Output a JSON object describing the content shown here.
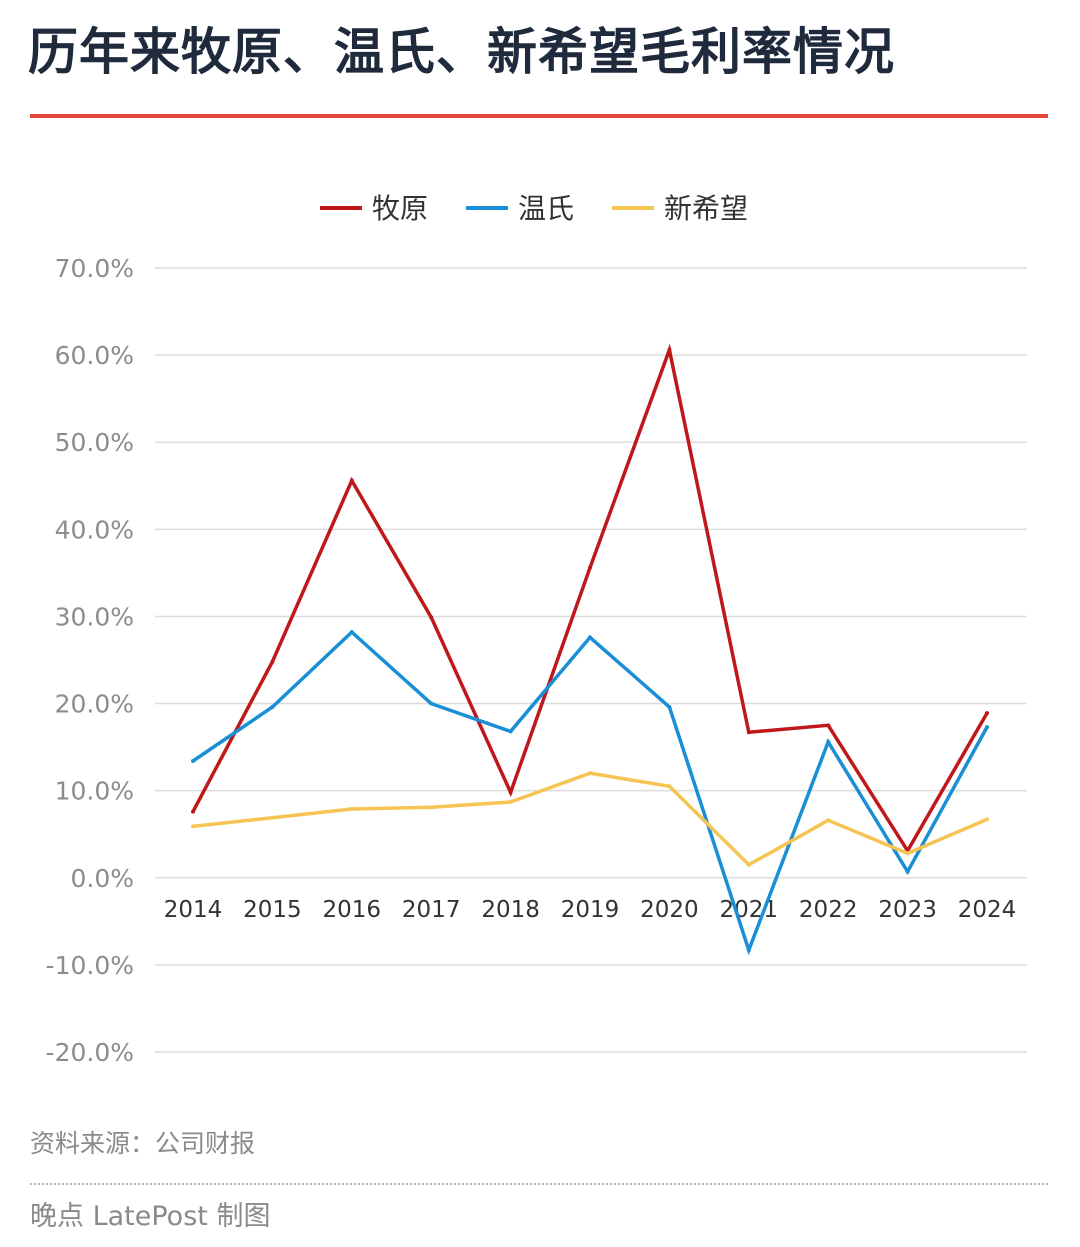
{
  "header": {
    "title": "历年来牧原、温氏、新希望毛利率情况"
  },
  "footer": {
    "source": "资料来源：公司财报",
    "credit": "晚点 LatePost 制图"
  },
  "colors": {
    "accent_rule": "#e2473a",
    "grid": "#dcdcdc"
  },
  "chart_data": {
    "type": "line",
    "title": "历年来牧原、温氏、新希望毛利率情况",
    "xlabel": "",
    "ylabel": "",
    "ylim": [
      -20,
      70
    ],
    "ytick_step": 10,
    "ytick_labels": [
      "70.0%",
      "60.0%",
      "50.0%",
      "40.0%",
      "30.0%",
      "20.0%",
      "10.0%",
      "0.0%",
      "-10.0%",
      "-20.0%"
    ],
    "grid": true,
    "legend": "top-center",
    "x": [
      "2014",
      "2015",
      "2016",
      "2017",
      "2018",
      "2019",
      "2020",
      "2021",
      "2022",
      "2023",
      "2024"
    ],
    "series": [
      {
        "name": "牧原",
        "color": "#c0171b",
        "values": [
          7.6,
          24.8,
          45.6,
          29.9,
          9.8,
          35.6,
          60.6,
          16.7,
          17.5,
          3.1,
          18.9
        ]
      },
      {
        "name": "温氏",
        "color": "#1a8fd6",
        "values": [
          13.4,
          19.6,
          28.2,
          20.0,
          16.8,
          27.6,
          19.6,
          -8.3,
          15.6,
          0.7,
          17.3
        ]
      },
      {
        "name": "新希望",
        "color": "#f5c453",
        "values": [
          5.9,
          6.9,
          7.9,
          8.1,
          8.7,
          12.0,
          10.5,
          1.5,
          6.6,
          2.8,
          6.7
        ]
      }
    ]
  }
}
